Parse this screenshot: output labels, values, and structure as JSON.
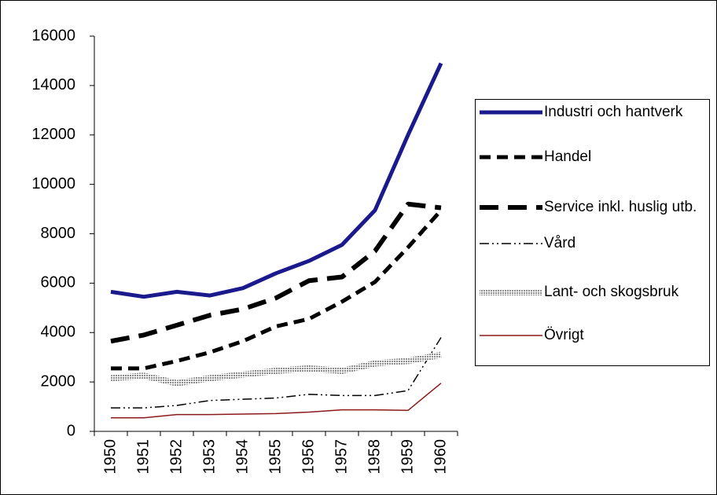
{
  "chart_data": {
    "type": "line",
    "categories": [
      "1950",
      "1951",
      "1952",
      "1953",
      "1954",
      "1955",
      "1956",
      "1957",
      "1958",
      "1959",
      "1960"
    ],
    "series": [
      {
        "name": "Industri och hantverk",
        "color": "#1a1a8c",
        "values": [
          5650,
          5450,
          5650,
          5500,
          5800,
          6400,
          6900,
          7550,
          8950,
          12000,
          14900
        ]
      },
      {
        "name": "Handel",
        "color": "#000000",
        "values": [
          2550,
          2550,
          2850,
          3200,
          3650,
          4250,
          4550,
          5250,
          6050,
          7450,
          8950
        ]
      },
      {
        "name": "Service inkl. huslig utb.",
        "color": "#000000",
        "values": [
          3650,
          3900,
          4300,
          4700,
          4950,
          5400,
          6100,
          6250,
          7300,
          9200,
          9050
        ]
      },
      {
        "name": "Vård",
        "color": "#000000",
        "values": [
          950,
          950,
          1050,
          1250,
          1300,
          1350,
          1500,
          1450,
          1450,
          1650,
          3800
        ]
      },
      {
        "name": "Lant- och skogsbruk",
        "color": "#8c8c8c",
        "values": [
          2150,
          2250,
          1950,
          2150,
          2300,
          2450,
          2550,
          2450,
          2750,
          2850,
          3100
        ]
      },
      {
        "name": "Övrigt",
        "color": "#8b1a1a",
        "values": [
          550,
          550,
          680,
          680,
          700,
          720,
          780,
          870,
          870,
          850,
          1950
        ]
      }
    ],
    "ylim": [
      0,
      16000
    ],
    "yticks": [
      0,
      2000,
      4000,
      6000,
      8000,
      10000,
      12000,
      14000,
      16000
    ],
    "legend": "right"
  }
}
